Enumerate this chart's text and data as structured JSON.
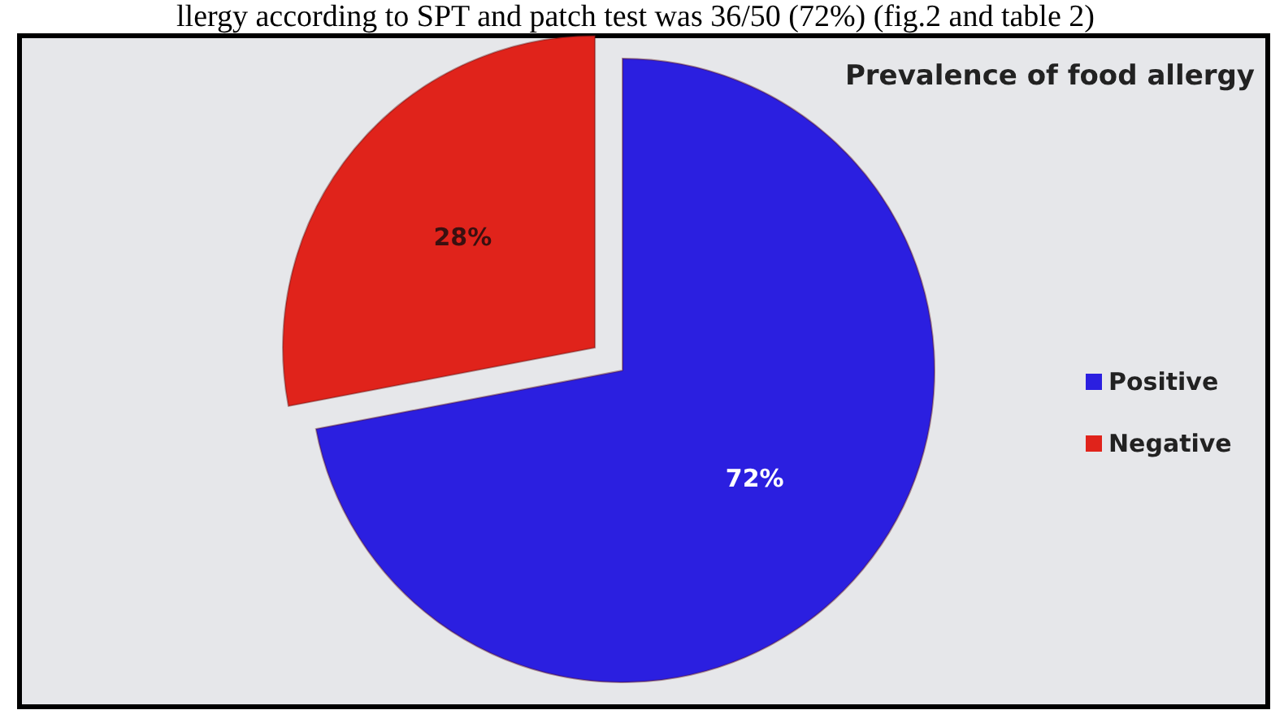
{
  "chart_data": {
    "type": "pie",
    "title": "Prevalence of food allergy",
    "categories": [
      "Positive",
      "Negative"
    ],
    "values": [
      72,
      28
    ],
    "colors": [
      "#2b1fe0",
      "#e0231b"
    ],
    "value_labels": [
      "72%",
      "28%"
    ],
    "legend": "right",
    "annotations": [
      "llergy according to SPT and patch test was 36/50 (72%) (fig.2 and table 2)"
    ]
  }
}
